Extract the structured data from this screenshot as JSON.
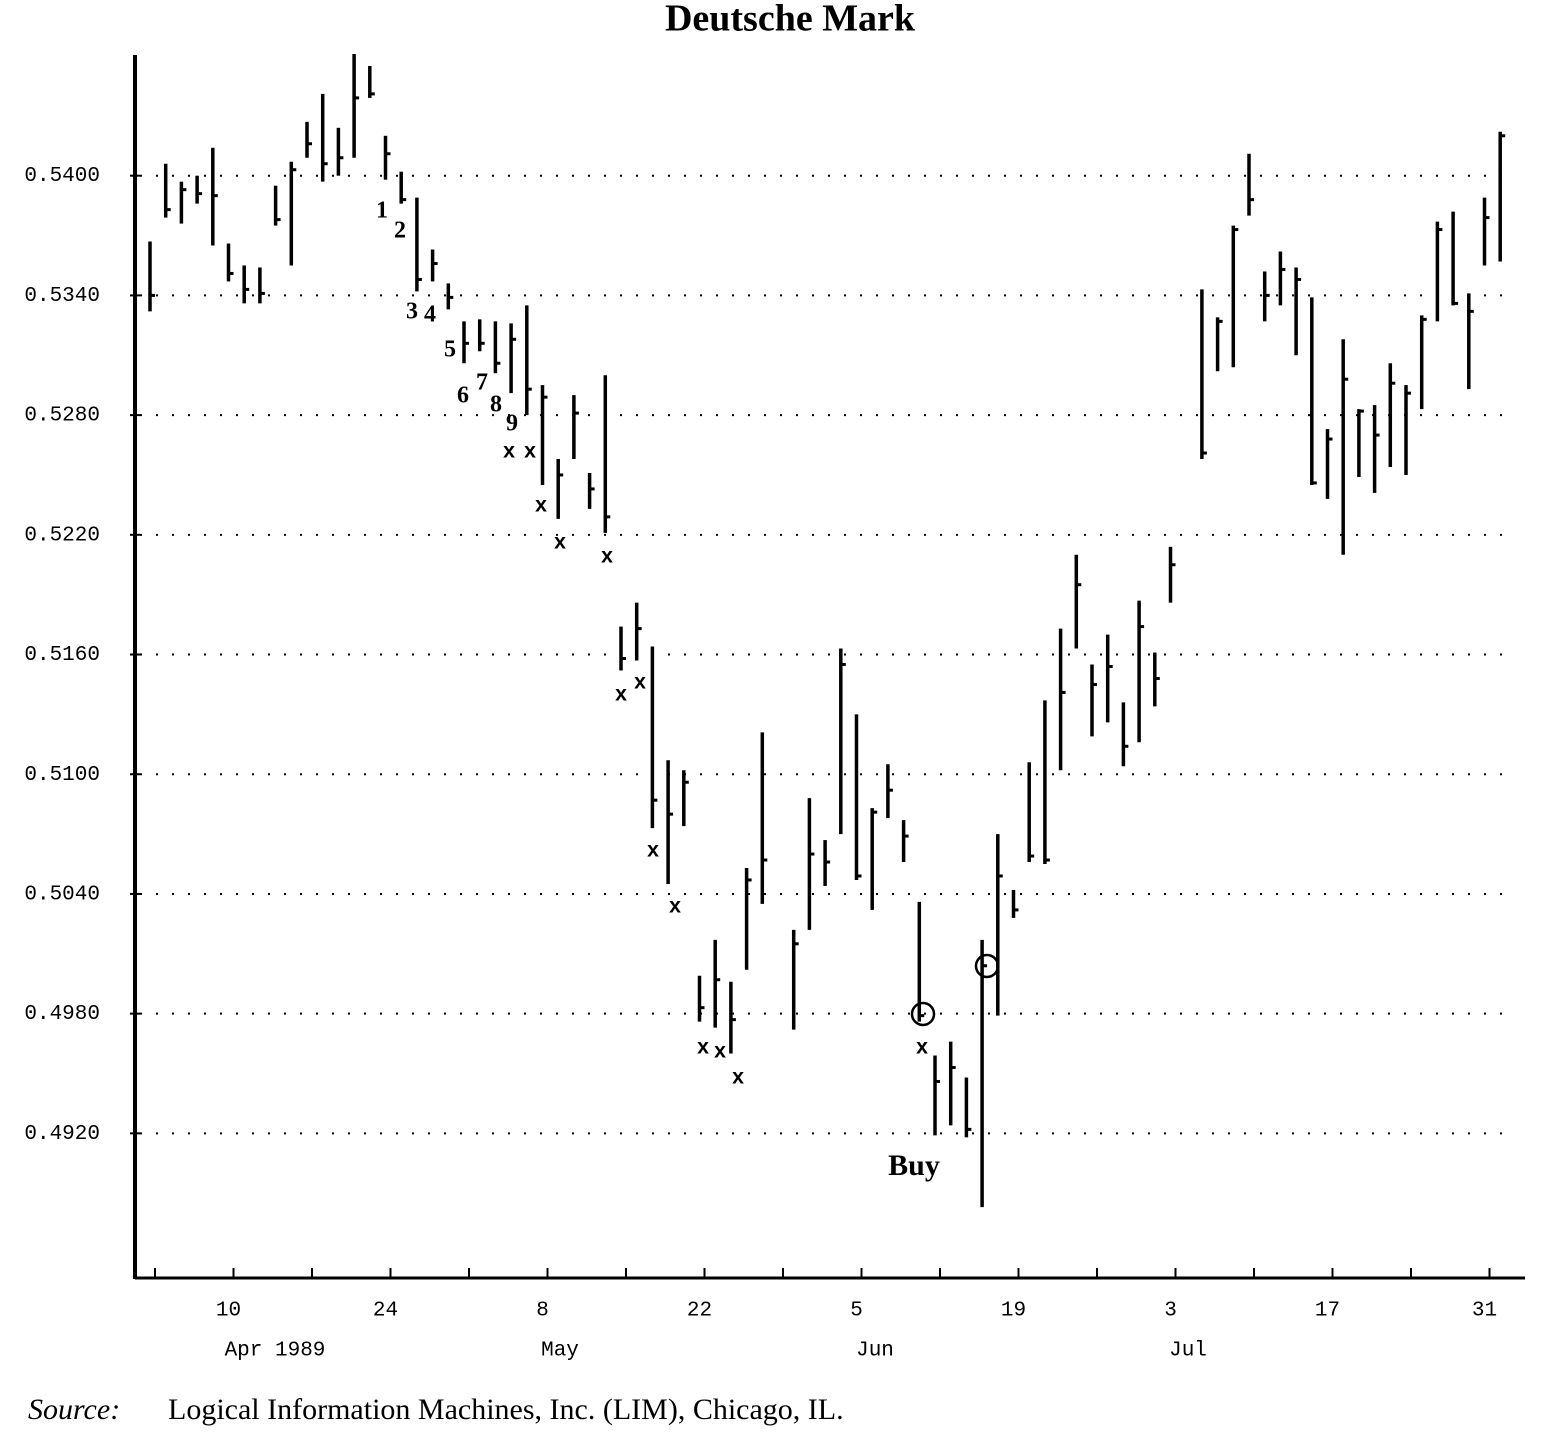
{
  "chart_data": {
    "type": "ohlc",
    "title": "Deutsche Mark",
    "categories": [
      null,
      null,
      null,
      null,
      null,
      "10",
      null,
      null,
      null,
      null,
      null,
      null,
      null,
      null,
      null,
      "24",
      null,
      null,
      null,
      null,
      null,
      null,
      null,
      null,
      null,
      "8",
      null,
      null,
      null,
      null,
      null,
      null,
      null,
      null,
      null,
      "22",
      null,
      null,
      null,
      null,
      null,
      null,
      null,
      null,
      null,
      "5",
      null,
      null,
      null,
      null,
      null,
      null,
      null,
      null,
      null,
      "19",
      null,
      null,
      null,
      null,
      null,
      null,
      null,
      null,
      null,
      "3",
      null,
      null,
      null,
      null,
      null,
      null,
      null,
      null,
      null,
      "17",
      null,
      null,
      null,
      null,
      null,
      null,
      null,
      null,
      null,
      "31",
      null
    ],
    "months": [
      "Apr 1989",
      "May",
      "Jun",
      "Jul"
    ],
    "high": [
      0.5367,
      0.5406,
      0.5397,
      0.54,
      0.5414,
      0.5366,
      0.5355,
      0.5354,
      0.5395,
      0.5407,
      0.5427,
      0.5441,
      0.5424,
      0.5461,
      0.5455,
      0.542,
      0.5402,
      0.5389,
      0.5363,
      0.5346,
      0.5327,
      0.5328,
      0.5327,
      0.5326,
      0.5335,
      0.5295,
      0.5258,
      0.529,
      0.5251,
      0.53,
      0.5174,
      0.5186,
      0.5164,
      0.5107,
      0.5102,
      0.4999,
      0.5017,
      0.4996,
      0.5053,
      0.5121,
      null,
      0.5022,
      0.5088,
      0.5067,
      0.5163,
      0.513,
      0.5083,
      0.5105,
      0.5077,
      0.5036,
      0.4959,
      0.4966,
      0.4948,
      0.5017,
      0.507,
      0.5042,
      0.5106,
      0.5137,
      0.5173,
      0.521,
      0.5155,
      0.517,
      0.5136,
      0.5187,
      0.5161,
      0.5214,
      null,
      0.5343,
      0.5329,
      0.5375,
      0.5411,
      0.5352,
      0.5362,
      0.5354,
      0.5339,
      0.5273,
      0.5318,
      0.5283,
      0.5285,
      0.5306,
      0.5295,
      0.533,
      0.5377,
      0.5382,
      0.5341,
      0.5389,
      0.5422
    ],
    "low": [
      0.5332,
      0.5379,
      0.5376,
      0.5386,
      0.5365,
      0.5347,
      0.5336,
      0.5336,
      0.5375,
      0.5355,
      0.5409,
      0.5397,
      0.54,
      0.5409,
      0.5439,
      0.5398,
      0.5386,
      0.5342,
      0.5347,
      0.5333,
      0.5306,
      0.5312,
      0.5301,
      0.5291,
      0.528,
      0.5245,
      0.5228,
      0.5258,
      0.5233,
      0.5221,
      0.5152,
      0.5157,
      0.5073,
      0.5045,
      0.5074,
      0.4976,
      0.4973,
      0.496,
      0.5002,
      0.5035,
      null,
      0.4972,
      0.5022,
      0.5044,
      0.507,
      0.5047,
      0.5032,
      0.5078,
      0.5056,
      0.4976,
      0.4919,
      0.4924,
      0.4918,
      0.4883,
      0.4979,
      0.5028,
      0.5056,
      0.5055,
      0.5102,
      0.5163,
      0.5119,
      0.5126,
      0.5104,
      0.5116,
      0.5134,
      0.5186,
      null,
      0.5258,
      0.5302,
      0.5304,
      0.538,
      0.5327,
      0.5335,
      0.531,
      0.5245,
      0.5238,
      0.521,
      0.5249,
      0.5241,
      0.5254,
      0.525,
      0.5283,
      0.5327,
      0.5335,
      0.5293,
      0.5355,
      0.5357
    ],
    "close": [
      0.534,
      0.5383,
      0.5393,
      0.5391,
      0.539,
      0.5351,
      0.5343,
      0.5341,
      0.5378,
      0.5403,
      0.5416,
      0.5406,
      0.5409,
      0.5439,
      0.5441,
      0.5411,
      0.5388,
      0.5348,
      0.5356,
      0.5339,
      0.5316,
      0.5316,
      0.5306,
      0.5318,
      0.5293,
      0.5289,
      0.525,
      0.5281,
      0.5243,
      0.5229,
      0.5158,
      0.5173,
      0.5087,
      0.508,
      0.5096,
      0.4983,
      0.4997,
      0.4977,
      0.5047,
      0.5057,
      null,
      0.5015,
      0.506,
      0.5056,
      0.5155,
      0.5049,
      0.5081,
      0.5092,
      0.5069,
      0.4979,
      0.4946,
      0.4953,
      0.4922,
      0.5004,
      0.5049,
      0.5032,
      0.5059,
      0.5057,
      0.5141,
      0.5195,
      0.5145,
      0.5154,
      0.5114,
      0.5174,
      0.5148,
      0.5205,
      null,
      0.5261,
      0.5327,
      0.5373,
      0.5388,
      0.534,
      0.5353,
      0.5348,
      0.5246,
      0.5268,
      0.5298,
      0.5282,
      0.527,
      0.5296,
      0.5291,
      0.5328,
      0.5373,
      0.5336,
      0.5332,
      0.5379,
      0.542
    ],
    "color": "#000000",
    "ylim": [
      0.4848,
      0.5462
    ],
    "yticks": [
      {
        "value": 0.492,
        "label": "0.4920"
      },
      {
        "value": 0.498,
        "label": "0.4980"
      },
      {
        "value": 0.504,
        "label": "0.5040"
      },
      {
        "value": 0.51,
        "label": "0.5100"
      },
      {
        "value": 0.516,
        "label": "0.5160"
      },
      {
        "value": 0.522,
        "label": "0.5220"
      },
      {
        "value": 0.528,
        "label": "0.5280"
      },
      {
        "value": 0.534,
        "label": "0.5340"
      },
      {
        "value": 0.54,
        "label": "0.5400"
      }
    ],
    "grid": true,
    "annotations": [
      "1",
      "2",
      "3",
      "4",
      "5",
      "6",
      "7",
      "8",
      "9",
      "x",
      "x",
      "x",
      "x",
      "x",
      "x",
      "x",
      "x",
      "x",
      "x",
      "x",
      "x",
      "x",
      "Buy"
    ],
    "source_label": "Source:",
    "source": "Logical Information Machines, Inc. (LIM), Chicago, IL."
  }
}
